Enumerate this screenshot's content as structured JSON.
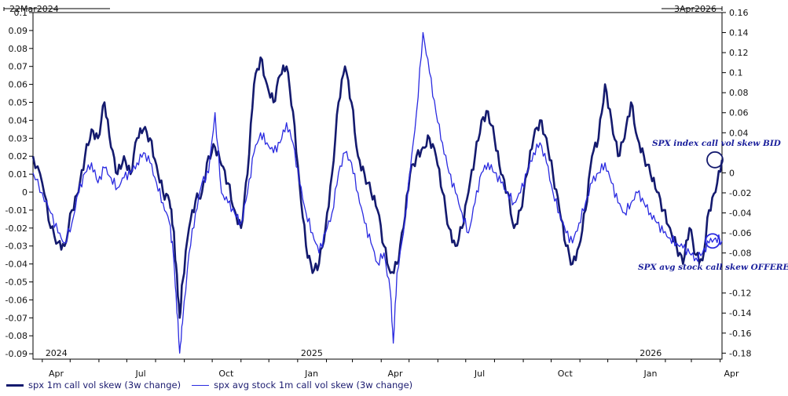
{
  "chart_data": {
    "type": "line",
    "date_range": {
      "start": "22Mar2024",
      "end": "3Apr2026"
    },
    "x_tick_labels": [
      "Apr",
      "Jul",
      "Oct",
      "Jan",
      "Apr",
      "Jul",
      "Oct",
      "Jan",
      "Apr"
    ],
    "year_labels": [
      {
        "label": "2024",
        "month": "2024-04"
      },
      {
        "label": "2025",
        "month": "2025-01"
      },
      {
        "label": "2026",
        "month": "2026-01"
      }
    ],
    "y_left": {
      "lim": [
        -0.093,
        0.1
      ],
      "ticks": [
        "0.1",
        "0.09",
        "0.08",
        "0.07",
        "0.06",
        "0.05",
        "0.04",
        "0.03",
        "0.02",
        "0.01",
        "0",
        "-0.01",
        "-0.02",
        "-0.03",
        "-0.04",
        "-0.05",
        "-0.06",
        "-0.07",
        "-0.08",
        "-0.09"
      ]
    },
    "y_right": {
      "lim": [
        -0.186,
        0.16
      ],
      "ticks": [
        "0.16",
        "0.14",
        "0.12",
        "0.1",
        "0.08",
        "0.06",
        "0.04",
        "0",
        "-0.02",
        "-0.04",
        "-0.06",
        "-0.08",
        "-0.12",
        "-0.14",
        "-0.16",
        "-0.18"
      ]
    },
    "series": [
      {
        "name": "spx 1m call vol skew (3w change)",
        "axis": "left",
        "color": "#141a6e",
        "points": [
          [
            "2024-03-22",
            0.02
          ],
          [
            "2024-04-01",
            0.005
          ],
          [
            "2024-04-10",
            -0.02
          ],
          [
            "2024-04-18",
            -0.028
          ],
          [
            "2024-04-25",
            -0.03
          ],
          [
            "2024-05-03",
            -0.01
          ],
          [
            "2024-05-10",
            0.0
          ],
          [
            "2024-05-17",
            0.02
          ],
          [
            "2024-05-24",
            0.035
          ],
          [
            "2024-05-31",
            0.03
          ],
          [
            "2024-06-07",
            0.05
          ],
          [
            "2024-06-14",
            0.025
          ],
          [
            "2024-06-21",
            0.01
          ],
          [
            "2024-06-28",
            0.02
          ],
          [
            "2024-07-05",
            0.01
          ],
          [
            "2024-07-12",
            0.03
          ],
          [
            "2024-07-19",
            0.035
          ],
          [
            "2024-07-26",
            0.03
          ],
          [
            "2024-08-02",
            0.015
          ],
          [
            "2024-08-09",
            0.0
          ],
          [
            "2024-08-16",
            -0.005
          ],
          [
            "2024-08-20",
            -0.02
          ],
          [
            "2024-08-23",
            -0.04
          ],
          [
            "2024-08-27",
            -0.07
          ],
          [
            "2024-08-30",
            -0.05
          ],
          [
            "2024-09-06",
            -0.02
          ],
          [
            "2024-09-13",
            -0.005
          ],
          [
            "2024-09-20",
            0.0
          ],
          [
            "2024-09-27",
            0.02
          ],
          [
            "2024-10-04",
            0.025
          ],
          [
            "2024-10-11",
            0.015
          ],
          [
            "2024-10-18",
            0.005
          ],
          [
            "2024-10-25",
            -0.01
          ],
          [
            "2024-11-01",
            -0.02
          ],
          [
            "2024-11-08",
            0.01
          ],
          [
            "2024-11-15",
            0.06
          ],
          [
            "2024-11-22",
            0.075
          ],
          [
            "2024-11-29",
            0.06
          ],
          [
            "2024-12-06",
            0.05
          ],
          [
            "2024-12-13",
            0.065
          ],
          [
            "2024-12-20",
            0.07
          ],
          [
            "2024-12-27",
            0.045
          ],
          [
            "2025-01-03",
            0.005
          ],
          [
            "2025-01-10",
            -0.03
          ],
          [
            "2025-01-17",
            -0.045
          ],
          [
            "2025-01-24",
            -0.04
          ],
          [
            "2025-01-31",
            -0.02
          ],
          [
            "2025-02-07",
            0.01
          ],
          [
            "2025-02-14",
            0.05
          ],
          [
            "2025-02-21",
            0.07
          ],
          [
            "2025-02-28",
            0.05
          ],
          [
            "2025-03-07",
            0.02
          ],
          [
            "2025-03-14",
            0.01
          ],
          [
            "2025-03-21",
            0.0
          ],
          [
            "2025-03-28",
            -0.01
          ],
          [
            "2025-04-04",
            -0.03
          ],
          [
            "2025-04-11",
            -0.045
          ],
          [
            "2025-04-18",
            -0.04
          ],
          [
            "2025-04-25",
            -0.02
          ],
          [
            "2025-05-02",
            0.01
          ],
          [
            "2025-05-09",
            0.02
          ],
          [
            "2025-05-16",
            0.025
          ],
          [
            "2025-05-23",
            0.03
          ],
          [
            "2025-05-30",
            0.02
          ],
          [
            "2025-06-06",
            0.0
          ],
          [
            "2025-06-13",
            -0.02
          ],
          [
            "2025-06-20",
            -0.03
          ],
          [
            "2025-06-27",
            -0.02
          ],
          [
            "2025-07-04",
            0.0
          ],
          [
            "2025-07-11",
            0.02
          ],
          [
            "2025-07-18",
            0.04
          ],
          [
            "2025-07-25",
            0.045
          ],
          [
            "2025-08-01",
            0.03
          ],
          [
            "2025-08-08",
            0.01
          ],
          [
            "2025-08-15",
            0.0
          ],
          [
            "2025-08-22",
            -0.02
          ],
          [
            "2025-08-29",
            -0.01
          ],
          [
            "2025-09-05",
            0.01
          ],
          [
            "2025-09-12",
            0.03
          ],
          [
            "2025-09-19",
            0.04
          ],
          [
            "2025-09-26",
            0.03
          ],
          [
            "2025-10-03",
            0.01
          ],
          [
            "2025-10-10",
            -0.01
          ],
          [
            "2025-10-17",
            -0.03
          ],
          [
            "2025-10-24",
            -0.04
          ],
          [
            "2025-10-31",
            -0.03
          ],
          [
            "2025-11-07",
            -0.01
          ],
          [
            "2025-11-14",
            0.02
          ],
          [
            "2025-11-21",
            0.03
          ],
          [
            "2025-11-28",
            0.06
          ],
          [
            "2025-12-05",
            0.04
          ],
          [
            "2025-12-12",
            0.02
          ],
          [
            "2025-12-19",
            0.03
          ],
          [
            "2025-12-26",
            0.05
          ],
          [
            "2026-01-02",
            0.03
          ],
          [
            "2026-01-09",
            0.02
          ],
          [
            "2026-01-16",
            0.01
          ],
          [
            "2026-01-23",
            0.0
          ],
          [
            "2026-01-30",
            -0.01
          ],
          [
            "2026-02-06",
            -0.02
          ],
          [
            "2026-02-13",
            -0.03
          ],
          [
            "2026-02-20",
            -0.04
          ],
          [
            "2026-02-27",
            -0.02
          ],
          [
            "2026-03-06",
            -0.035
          ],
          [
            "2026-03-13",
            -0.038
          ],
          [
            "2026-03-20",
            -0.01
          ],
          [
            "2026-03-27",
            0.0
          ],
          [
            "2026-04-03",
            0.018
          ]
        ]
      },
      {
        "name": "spx avg stock 1m call vol skew (3w change)",
        "axis": "right",
        "color": "#2a2ae0",
        "points": [
          [
            "2024-03-22",
            0.0
          ],
          [
            "2024-04-01",
            -0.02
          ],
          [
            "2024-04-10",
            -0.04
          ],
          [
            "2024-04-18",
            -0.06
          ],
          [
            "2024-04-25",
            -0.07
          ],
          [
            "2024-05-03",
            -0.05
          ],
          [
            "2024-05-10",
            -0.02
          ],
          [
            "2024-05-17",
            0.0
          ],
          [
            "2024-05-24",
            0.01
          ],
          [
            "2024-05-31",
            -0.01
          ],
          [
            "2024-06-07",
            0.005
          ],
          [
            "2024-06-14",
            -0.005
          ],
          [
            "2024-06-21",
            -0.015
          ],
          [
            "2024-06-28",
            -0.005
          ],
          [
            "2024-07-05",
            0.0
          ],
          [
            "2024-07-12",
            0.01
          ],
          [
            "2024-07-19",
            0.02
          ],
          [
            "2024-07-26",
            0.01
          ],
          [
            "2024-08-02",
            -0.01
          ],
          [
            "2024-08-09",
            -0.03
          ],
          [
            "2024-08-16",
            -0.05
          ],
          [
            "2024-08-20",
            -0.08
          ],
          [
            "2024-08-23",
            -0.12
          ],
          [
            "2024-08-27",
            -0.18
          ],
          [
            "2024-08-30",
            -0.15
          ],
          [
            "2024-09-06",
            -0.08
          ],
          [
            "2024-09-13",
            -0.04
          ],
          [
            "2024-09-20",
            -0.01
          ],
          [
            "2024-09-27",
            0.0
          ],
          [
            "2024-10-04",
            0.06
          ],
          [
            "2024-10-11",
            -0.02
          ],
          [
            "2024-10-18",
            -0.03
          ],
          [
            "2024-10-25",
            -0.04
          ],
          [
            "2024-11-01",
            -0.05
          ],
          [
            "2024-11-08",
            -0.02
          ],
          [
            "2024-11-15",
            0.02
          ],
          [
            "2024-11-22",
            0.04
          ],
          [
            "2024-11-29",
            0.03
          ],
          [
            "2024-12-06",
            0.02
          ],
          [
            "2024-12-13",
            0.03
          ],
          [
            "2024-12-20",
            0.05
          ],
          [
            "2024-12-27",
            0.03
          ],
          [
            "2025-01-03",
            -0.01
          ],
          [
            "2025-01-10",
            -0.04
          ],
          [
            "2025-01-17",
            -0.06
          ],
          [
            "2025-01-24",
            -0.08
          ],
          [
            "2025-01-31",
            -0.06
          ],
          [
            "2025-02-07",
            -0.04
          ],
          [
            "2025-02-14",
            0.0
          ],
          [
            "2025-02-21",
            0.02
          ],
          [
            "2025-02-28",
            0.01
          ],
          [
            "2025-03-07",
            -0.02
          ],
          [
            "2025-03-14",
            -0.05
          ],
          [
            "2025-03-21",
            -0.07
          ],
          [
            "2025-03-28",
            -0.09
          ],
          [
            "2025-04-04",
            -0.08
          ],
          [
            "2025-04-11",
            -0.12
          ],
          [
            "2025-04-14",
            -0.17
          ],
          [
            "2025-04-18",
            -0.1
          ],
          [
            "2025-04-25",
            -0.06
          ],
          [
            "2025-05-02",
            0.0
          ],
          [
            "2025-05-09",
            0.06
          ],
          [
            "2025-05-16",
            0.14
          ],
          [
            "2025-05-23",
            0.1
          ],
          [
            "2025-05-30",
            0.06
          ],
          [
            "2025-06-06",
            0.03
          ],
          [
            "2025-06-13",
            0.0
          ],
          [
            "2025-06-20",
            -0.02
          ],
          [
            "2025-06-27",
            -0.04
          ],
          [
            "2025-07-04",
            -0.06
          ],
          [
            "2025-07-11",
            -0.03
          ],
          [
            "2025-07-18",
            0.0
          ],
          [
            "2025-07-25",
            0.01
          ],
          [
            "2025-08-01",
            0.0
          ],
          [
            "2025-08-08",
            -0.01
          ],
          [
            "2025-08-15",
            -0.02
          ],
          [
            "2025-08-22",
            -0.03
          ],
          [
            "2025-08-29",
            -0.02
          ],
          [
            "2025-09-05",
            0.0
          ],
          [
            "2025-09-12",
            0.02
          ],
          [
            "2025-09-19",
            0.03
          ],
          [
            "2025-09-26",
            0.01
          ],
          [
            "2025-10-03",
            -0.02
          ],
          [
            "2025-10-10",
            -0.04
          ],
          [
            "2025-10-17",
            -0.06
          ],
          [
            "2025-10-24",
            -0.07
          ],
          [
            "2025-10-31",
            -0.05
          ],
          [
            "2025-11-07",
            -0.03
          ],
          [
            "2025-11-14",
            -0.01
          ],
          [
            "2025-11-21",
            0.0
          ],
          [
            "2025-11-28",
            0.01
          ],
          [
            "2025-12-05",
            -0.01
          ],
          [
            "2025-12-12",
            -0.03
          ],
          [
            "2025-12-19",
            -0.04
          ],
          [
            "2025-12-26",
            -0.03
          ],
          [
            "2026-01-02",
            -0.02
          ],
          [
            "2026-01-09",
            -0.03
          ],
          [
            "2026-01-16",
            -0.04
          ],
          [
            "2026-01-23",
            -0.05
          ],
          [
            "2026-01-30",
            -0.06
          ],
          [
            "2026-02-06",
            -0.065
          ],
          [
            "2026-02-13",
            -0.07
          ],
          [
            "2026-02-20",
            -0.075
          ],
          [
            "2026-02-27",
            -0.08
          ],
          [
            "2026-03-06",
            -0.085
          ],
          [
            "2026-03-13",
            -0.08
          ],
          [
            "2026-03-20",
            -0.07
          ],
          [
            "2026-03-27",
            -0.065
          ],
          [
            "2026-04-03",
            -0.068
          ]
        ]
      }
    ],
    "annotations": [
      {
        "text": "SPX index call vol skew BID",
        "series": 0
      },
      {
        "text": "SPX avg stock call skew OFFERED",
        "series": 1
      }
    ],
    "legend_position": "bottom-left",
    "grid": false
  }
}
